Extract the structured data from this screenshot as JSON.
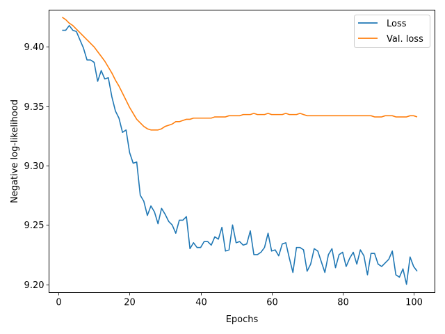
{
  "chart_data": {
    "type": "line",
    "title": "",
    "xlabel": "Epochs",
    "ylabel": "Negative log-likelihood",
    "xlim": [
      -2.7,
      106
    ],
    "ylim": [
      9.193,
      9.431
    ],
    "xticks": [
      0,
      20,
      40,
      60,
      80,
      100
    ],
    "yticks": [
      9.2,
      9.25,
      9.3,
      9.35,
      9.4
    ],
    "ytick_labels": [
      "9.20",
      "9.25",
      "9.30",
      "9.35",
      "9.40"
    ],
    "grid": false,
    "legend_position": "top-right",
    "x": [
      1,
      2,
      3,
      4,
      5,
      6,
      7,
      8,
      9,
      10,
      11,
      12,
      13,
      14,
      15,
      16,
      17,
      18,
      19,
      20,
      21,
      22,
      23,
      24,
      25,
      26,
      27,
      28,
      29,
      30,
      31,
      32,
      33,
      34,
      35,
      36,
      37,
      38,
      39,
      40,
      41,
      42,
      43,
      44,
      45,
      46,
      47,
      48,
      49,
      50,
      51,
      52,
      53,
      54,
      55,
      56,
      57,
      58,
      59,
      60,
      61,
      62,
      63,
      64,
      65,
      66,
      67,
      68,
      69,
      70,
      71,
      72,
      73,
      74,
      75,
      76,
      77,
      78,
      79,
      80,
      81,
      82,
      83,
      84,
      85,
      86,
      87,
      88,
      89,
      90,
      91,
      92,
      93,
      94,
      95,
      96,
      97,
      98,
      99,
      100,
      101
    ],
    "series": [
      {
        "name": "Loss",
        "color": "#1f77b4",
        "values": [
          9.414,
          9.414,
          9.418,
          9.414,
          9.413,
          9.406,
          9.399,
          9.389,
          9.389,
          9.387,
          9.371,
          9.38,
          9.373,
          9.374,
          9.358,
          9.346,
          9.34,
          9.328,
          9.33,
          9.311,
          9.302,
          9.303,
          9.275,
          9.27,
          9.258,
          9.266,
          9.261,
          9.251,
          9.264,
          9.259,
          9.253,
          9.25,
          9.243,
          9.254,
          9.254,
          9.257,
          9.23,
          9.235,
          9.231,
          9.231,
          9.236,
          9.236,
          9.233,
          9.24,
          9.238,
          9.248,
          9.228,
          9.229,
          9.25,
          9.235,
          9.236,
          9.233,
          9.234,
          9.245,
          9.225,
          9.225,
          9.227,
          9.231,
          9.243,
          9.228,
          9.229,
          9.224,
          9.234,
          9.235,
          9.222,
          9.21,
          9.231,
          9.231,
          9.229,
          9.211,
          9.217,
          9.23,
          9.228,
          9.219,
          9.21,
          9.225,
          9.23,
          9.214,
          9.225,
          9.227,
          9.215,
          9.222,
          9.227,
          9.217,
          9.229,
          9.224,
          9.208,
          9.226,
          9.226,
          9.217,
          9.215,
          9.218,
          9.221,
          9.228,
          9.208,
          9.206,
          9.213,
          9.2,
          9.223,
          9.215,
          9.211
        ]
      },
      {
        "name": "Val. loss",
        "color": "#ff7f0e",
        "values": [
          9.425,
          9.423,
          9.42,
          9.418,
          9.415,
          9.412,
          9.409,
          9.406,
          9.403,
          9.4,
          9.396,
          9.392,
          9.388,
          9.383,
          9.378,
          9.372,
          9.367,
          9.361,
          9.355,
          9.349,
          9.344,
          9.339,
          9.336,
          9.333,
          9.331,
          9.33,
          9.33,
          9.33,
          9.331,
          9.333,
          9.334,
          9.335,
          9.337,
          9.337,
          9.338,
          9.339,
          9.339,
          9.34,
          9.34,
          9.34,
          9.34,
          9.34,
          9.34,
          9.341,
          9.341,
          9.341,
          9.341,
          9.342,
          9.342,
          9.342,
          9.342,
          9.343,
          9.343,
          9.343,
          9.344,
          9.343,
          9.343,
          9.343,
          9.344,
          9.343,
          9.343,
          9.343,
          9.343,
          9.344,
          9.343,
          9.343,
          9.343,
          9.344,
          9.343,
          9.342,
          9.342,
          9.342,
          9.342,
          9.342,
          9.342,
          9.342,
          9.342,
          9.342,
          9.342,
          9.342,
          9.342,
          9.342,
          9.342,
          9.342,
          9.342,
          9.342,
          9.342,
          9.342,
          9.341,
          9.341,
          9.341,
          9.342,
          9.342,
          9.342,
          9.341,
          9.341,
          9.341,
          9.341,
          9.342,
          9.342,
          9.341
        ]
      }
    ]
  }
}
